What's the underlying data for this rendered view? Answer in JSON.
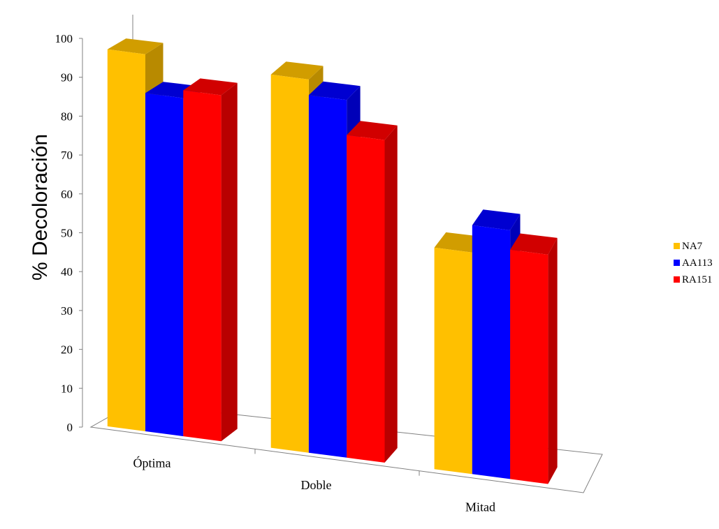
{
  "chart_data": {
    "type": "bar",
    "style": "3d-clustered-column",
    "categories": [
      "Óptima",
      "Doble",
      "Mitad"
    ],
    "series": [
      {
        "name": "NA7",
        "values": [
          97,
          96,
          57
        ],
        "color": "#FFC000"
      },
      {
        "name": "AA113",
        "values": [
          87,
          92,
          64
        ],
        "color": "#0000FF"
      },
      {
        "name": "RA151",
        "values": [
          89,
          83,
          59
        ],
        "color": "#FF0000"
      }
    ],
    "xlabel": "",
    "ylabel": "% Decoloración",
    "ylim": [
      0,
      100
    ],
    "yticks": [
      0,
      10,
      20,
      30,
      40,
      50,
      60,
      70,
      80,
      90,
      100
    ],
    "grid": false,
    "legend_position": "right"
  }
}
